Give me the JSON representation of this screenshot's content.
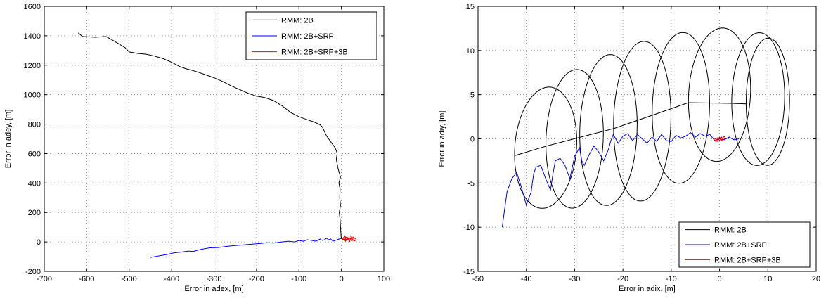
{
  "chart_data": [
    {
      "type": "line",
      "title": "",
      "xlabel": "Error in adex, [m]",
      "ylabel": "Error in adey, [m]",
      "xlim": [
        -700,
        100
      ],
      "ylim": [
        -200,
        1600
      ],
      "xticks": [
        -700,
        -600,
        -500,
        -400,
        -300,
        -200,
        -100,
        0,
        100
      ],
      "yticks": [
        -200,
        0,
        200,
        400,
        600,
        800,
        1000,
        1200,
        1400,
        1600
      ],
      "grid": true,
      "legend_position": "top-right",
      "series": [
        {
          "name": "RMM: 2B",
          "color": "#000000",
          "x": [
            -620,
            -610,
            -580,
            -555,
            -545,
            -530,
            -510,
            -500,
            -480,
            -460,
            -440,
            -420,
            -400,
            -380,
            -365,
            -355,
            -340,
            -320,
            -300,
            -280,
            -260,
            -240,
            -220,
            -200,
            -190,
            -180,
            -160,
            -140,
            -120,
            -100,
            -80,
            -65,
            -50,
            -45,
            -40,
            -35,
            -30,
            -25,
            -20,
            -15,
            -12,
            -10,
            -12,
            -8,
            -5,
            -2,
            -6,
            -3,
            -4,
            -2,
            -5,
            -3,
            -2,
            -1,
            0
          ],
          "y": [
            1420,
            1395,
            1390,
            1395,
            1380,
            1355,
            1320,
            1290,
            1280,
            1275,
            1262,
            1245,
            1220,
            1190,
            1175,
            1168,
            1155,
            1135,
            1115,
            1090,
            1060,
            1035,
            1010,
            990,
            985,
            980,
            960,
            925,
            880,
            850,
            830,
            815,
            795,
            780,
            750,
            720,
            700,
            680,
            660,
            640,
            620,
            600,
            560,
            500,
            470,
            440,
            400,
            360,
            300,
            250,
            200,
            150,
            100,
            50,
            20
          ]
        },
        {
          "name": "RMM: 2B+SRP",
          "color": "#0000ff",
          "x": [
            -450,
            -430,
            -410,
            -395,
            -380,
            -360,
            -350,
            -330,
            -310,
            -290,
            -270,
            -250,
            -230,
            -210,
            -190,
            -175,
            -160,
            -140,
            -125,
            -110,
            -100,
            -90,
            -80,
            -70,
            -60,
            -50,
            -45,
            -40,
            -35,
            -30,
            -25,
            -20,
            -15,
            -10,
            -5,
            0,
            5,
            10,
            15
          ],
          "y": [
            -105,
            -95,
            -85,
            -75,
            -70,
            -62,
            -65,
            -50,
            -40,
            -38,
            -30,
            -25,
            -20,
            -15,
            -10,
            -5,
            -8,
            0,
            5,
            0,
            10,
            5,
            15,
            10,
            5,
            20,
            10,
            15,
            25,
            15,
            20,
            5,
            10,
            15,
            20,
            25,
            15,
            20,
            10
          ]
        },
        {
          "name": "RMM: 2B+SRP+3B",
          "color": "#ff0000",
          "x": [
            0,
            5,
            10,
            8,
            15,
            12,
            20,
            18,
            25,
            22,
            30,
            28,
            35,
            30,
            25,
            20,
            15,
            10,
            5,
            3
          ],
          "y": [
            10,
            30,
            5,
            40,
            15,
            35,
            0,
            30,
            10,
            40,
            20,
            35,
            15,
            5,
            25,
            10,
            30,
            5,
            20,
            15
          ]
        }
      ]
    },
    {
      "type": "line",
      "title": "",
      "xlabel": "Error in adix, [m]",
      "ylabel": "Error in adiy, [m]",
      "xlim": [
        -50,
        20
      ],
      "ylim": [
        -15,
        15
      ],
      "xticks": [
        -50,
        -40,
        -30,
        -20,
        -10,
        0,
        10,
        20
      ],
      "yticks": [
        -15,
        -10,
        -5,
        0,
        5,
        10,
        15
      ],
      "grid": true,
      "legend_position": "bottom-right",
      "series": [
        {
          "name": "RMM: 2B",
          "color": "#000000",
          "loops": [
            {
              "cx": -36,
              "cy": -1,
              "rx": 6.5,
              "ry": 6.8,
              "tilt": 8
            },
            {
              "cx": -30,
              "cy": 0,
              "rx": 6.0,
              "ry": 7.8,
              "tilt": 8
            },
            {
              "cx": -23,
              "cy": 1,
              "rx": 6.0,
              "ry": 8.5,
              "tilt": 8
            },
            {
              "cx": -16,
              "cy": 2,
              "rx": 6.0,
              "ry": 9.0,
              "tilt": 8
            },
            {
              "cx": -8,
              "cy": 3.5,
              "rx": 6.0,
              "ry": 8.5,
              "tilt": 8
            },
            {
              "cx": 0,
              "cy": 5,
              "rx": 6.5,
              "ry": 7.5,
              "tilt": 8
            },
            {
              "cx": 8,
              "cy": 4.5,
              "rx": 5.5,
              "ry": 7.5,
              "tilt": 5
            },
            {
              "cx": 10,
              "cy": 4.2,
              "rx": 4.5,
              "ry": 7.2,
              "tilt": 3
            }
          ]
        },
        {
          "name": "RMM: 2B+SRP",
          "color": "#0000ff",
          "x": [
            -45,
            -44.5,
            -44,
            -43,
            -42,
            -41,
            -40,
            -39,
            -38.5,
            -38,
            -37,
            -36,
            -35,
            -34.5,
            -34,
            -33,
            -32,
            -31,
            -30,
            -29,
            -28.5,
            -28,
            -27,
            -26,
            -25,
            -24,
            -23,
            -22.5,
            -22,
            -21,
            -20,
            -19,
            -18,
            -17,
            -16,
            -15,
            -14,
            -13,
            -12,
            -11,
            -10,
            -9,
            -8,
            -7,
            -6,
            -5,
            -4,
            -3,
            -2,
            -1,
            0,
            1,
            2,
            3,
            4
          ],
          "y": [
            -10,
            -8,
            -6,
            -4.5,
            -3.8,
            -5.5,
            -7.5,
            -6,
            -4,
            -3.2,
            -3,
            -4.5,
            -5.8,
            -4,
            -2.5,
            -2.2,
            -3,
            -4.5,
            -2,
            -1,
            -2.5,
            -3,
            -1.8,
            -0.8,
            -1.5,
            -2.5,
            -1.2,
            -0.2,
            0.5,
            -0.5,
            0.3,
            0.6,
            -0.2,
            0.5,
            0,
            -0.5,
            0.2,
            -0.3,
            0.5,
            -0.2,
            -0.3,
            0.4,
            0.1,
            0.3,
            0.7,
            0.2,
            0.6,
            0.3,
            0.5,
            -0.2,
            0,
            -0.1,
            0.2,
            -0.1,
            0
          ]
        },
        {
          "name": "RMM: 2B+SRP+3B",
          "color": "#ff0000",
          "x": [
            -1.2,
            -0.8,
            -0.4,
            0,
            0.4,
            0.8,
            1.2,
            0.9,
            0.5,
            0,
            -0.5,
            -1
          ],
          "y": [
            0,
            -0.3,
            0.1,
            -0.2,
            0.2,
            -0.1,
            0.1,
            0.3,
            -0.2,
            0.2,
            -0.3,
            0.1
          ]
        }
      ]
    }
  ]
}
